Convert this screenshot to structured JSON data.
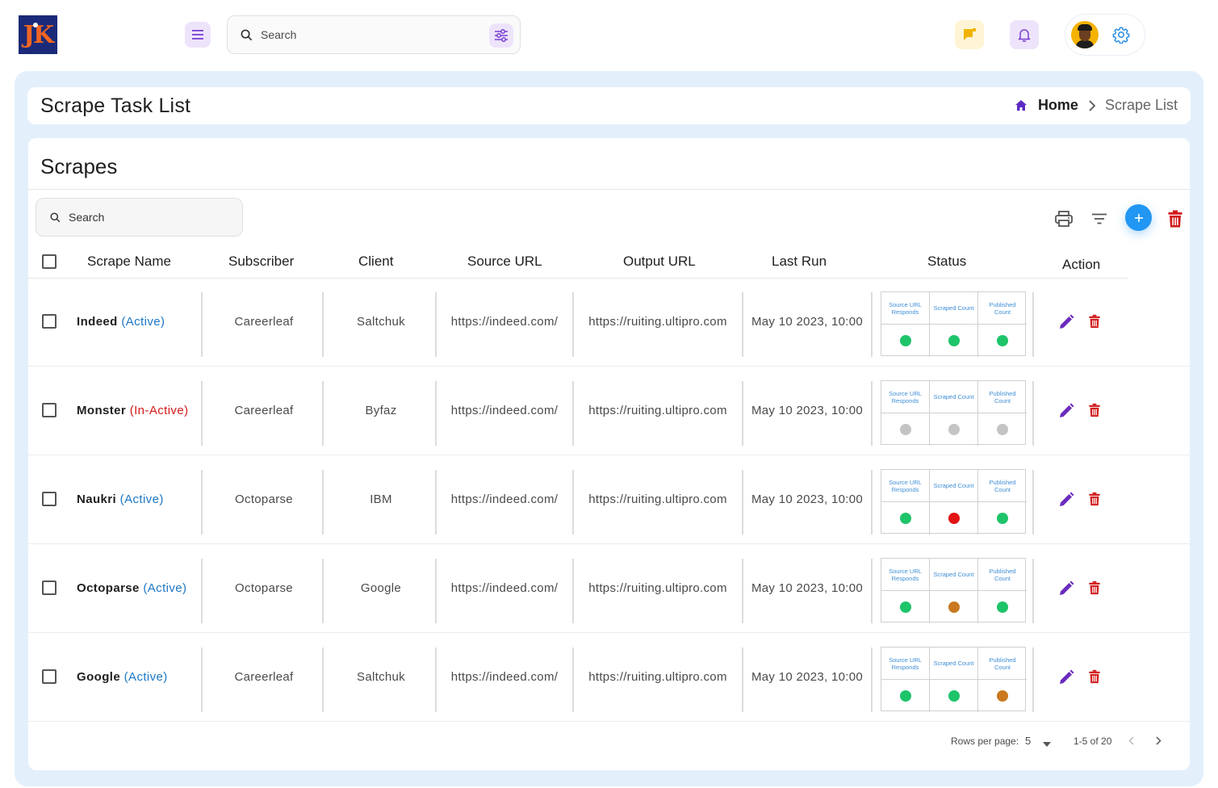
{
  "app": {
    "logo_text": "JK"
  },
  "topbar": {
    "search_placeholder": "Search"
  },
  "header": {
    "title": "Scrape Task List",
    "breadcrumb": {
      "home": "Home",
      "current": "Scrape List"
    }
  },
  "card": {
    "title": "Scrapes",
    "search_placeholder": "Search"
  },
  "colors": {
    "active": "#1d78c4",
    "inactive": "#d11a1a",
    "green": "#1ec46a",
    "red": "#e21414",
    "orange": "#c9781e",
    "grey": "#c4c4c4",
    "accent_blue": "#2196f3",
    "delete_red": "#d11a1a",
    "edit_purple": "#6a2bbd"
  },
  "columns": {
    "scrape_name": "Scrape Name",
    "subscriber": "Subscriber",
    "client": "Client",
    "source_url": "Source URL",
    "output_url": "Output URL",
    "last_run": "Last Run",
    "status": "Status",
    "action": "Action"
  },
  "status_labels": {
    "source": "Source URL Responds",
    "scraped": "Scraped Count",
    "published": "Published Count"
  },
  "rows": [
    {
      "name": "Indeed",
      "state": "(Active)",
      "subscriber": "Careerleaf",
      "client": "Saltchuk",
      "source_url": "https://indeed.com/",
      "output_url": "https://ruiting.ultipro.com",
      "last_run": "May 10 2023, 10:00",
      "status": [
        "green",
        "green",
        "green"
      ]
    },
    {
      "name": "Monster",
      "state": "(In-Active)",
      "subscriber": "Careerleaf",
      "client": "Byfaz",
      "source_url": "https://indeed.com/",
      "output_url": "https://ruiting.ultipro.com",
      "last_run": "May 10 2023, 10:00",
      "status": [
        "grey",
        "grey",
        "grey"
      ]
    },
    {
      "name": "Naukri",
      "state": "(Active)",
      "subscriber": "Octoparse",
      "client": "IBM",
      "source_url": "https://indeed.com/",
      "output_url": "https://ruiting.ultipro.com",
      "last_run": "May 10 2023, 10:00",
      "status": [
        "green",
        "red",
        "green"
      ]
    },
    {
      "name": "Octoparse",
      "state": "(Active)",
      "subscriber": "Octoparse",
      "client": "Google",
      "source_url": "https://indeed.com/",
      "output_url": "https://ruiting.ultipro.com",
      "last_run": "May 10 2023, 10:00",
      "status": [
        "green",
        "orange",
        "green"
      ]
    },
    {
      "name": "Google",
      "state": "(Active)",
      "subscriber": "Careerleaf",
      "client": "Saltchuk",
      "source_url": "https://indeed.com/",
      "output_url": "https://ruiting.ultipro.com",
      "last_run": "May 10 2023, 10:00",
      "status": [
        "green",
        "green",
        "orange"
      ]
    }
  ],
  "pagination": {
    "rows_per_page_label": "Rows per page:",
    "rows_per_page": "5",
    "range": "1-5 of 20"
  }
}
